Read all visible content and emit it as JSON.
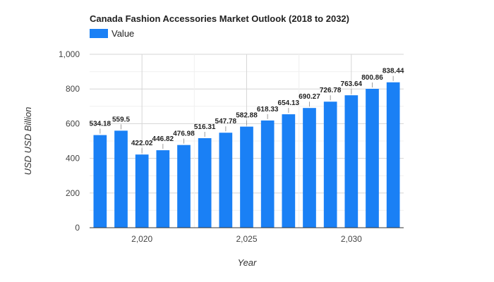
{
  "chart_data": {
    "type": "bar",
    "title": "Canada Fashion Accessories Market Outlook (2018 to 2032)",
    "xlabel": "Year",
    "ylabel": "USD USD Billion",
    "x": [
      2018,
      2019,
      2020,
      2021,
      2022,
      2023,
      2024,
      2025,
      2026,
      2027,
      2028,
      2029,
      2030,
      2031,
      2032
    ],
    "series": [
      {
        "name": "Value",
        "color": "#1a80f5",
        "values": [
          534.18,
          559.5,
          422.02,
          446.82,
          476.98,
          516.31,
          547.78,
          582.88,
          618.33,
          654.13,
          690.27,
          726.78,
          763.64,
          800.86,
          838.44
        ],
        "labels": [
          "534.18",
          "559.5",
          "422.02",
          "446.82",
          "476.98",
          "516.31",
          "547.78",
          "582.88",
          "618.33",
          "654.13",
          "690.27",
          "726.78",
          "763.64",
          "800.86",
          "838.44"
        ]
      }
    ],
    "ylim": [
      0,
      1000
    ],
    "yticks": [
      0,
      200,
      400,
      600,
      800,
      1000
    ],
    "ytick_labels": [
      "0",
      "200",
      "400",
      "600",
      "800",
      "1,000"
    ],
    "xticks": [
      2020,
      2025,
      2030
    ],
    "xtick_labels": [
      "2,020",
      "2,025",
      "2,030"
    ],
    "grid": true,
    "legend": "top-left"
  }
}
